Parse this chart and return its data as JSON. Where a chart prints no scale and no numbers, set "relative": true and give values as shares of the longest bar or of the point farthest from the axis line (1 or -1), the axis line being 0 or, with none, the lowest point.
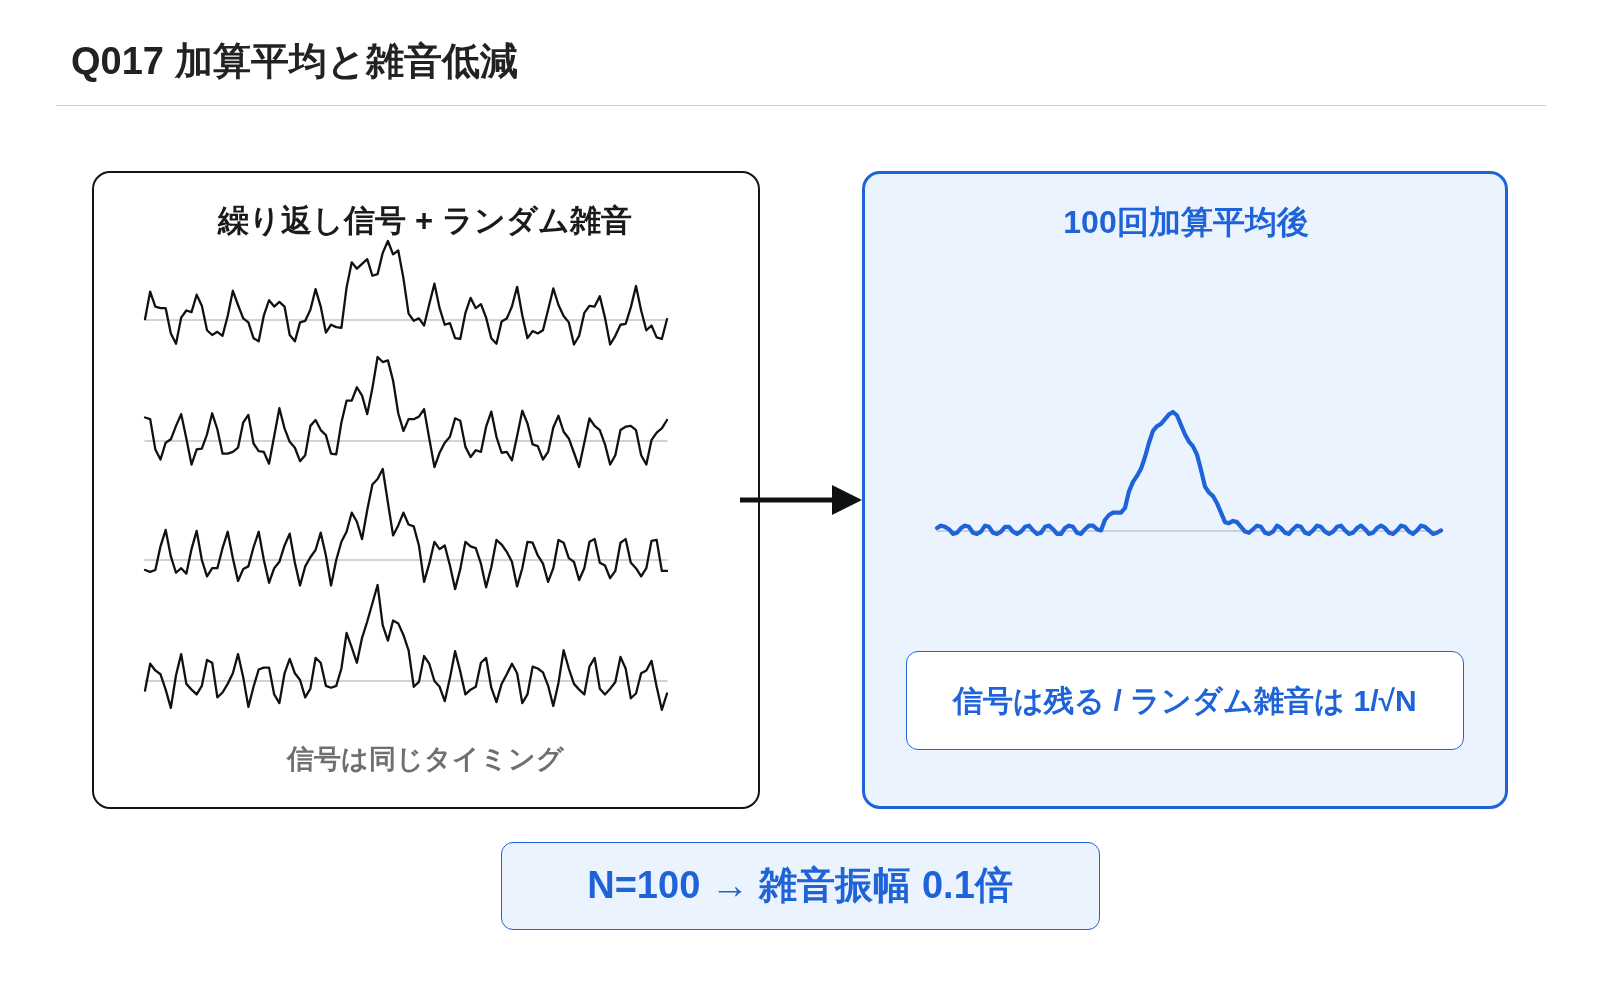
{
  "chart_data": [
    {
      "type": "other",
      "title": "Q017 加算平均と雑音低減"
    },
    {
      "type": "other",
      "title": "繰り返し信号 + ランダム雑音",
      "annotations": [
        "信号は同じタイミング"
      ]
    },
    {
      "type": "line",
      "relative": true,
      "color": "#111111",
      "categories": [
        null,
        null,
        null,
        null,
        null,
        null,
        null,
        null,
        null,
        null,
        null,
        null,
        null,
        null,
        null,
        null,
        null,
        null,
        null,
        null,
        null,
        null,
        null,
        null,
        null,
        null,
        null,
        null,
        null,
        null,
        null,
        null,
        null,
        null,
        null,
        null,
        null,
        null,
        null,
        null,
        null,
        null,
        null,
        null,
        null,
        null,
        null,
        null,
        null,
        null,
        null,
        null,
        null,
        null,
        null,
        null,
        null,
        null,
        null,
        null,
        null,
        null,
        null,
        null,
        null,
        null,
        null,
        null,
        null,
        null,
        null,
        null,
        null,
        null,
        null,
        null,
        null,
        null,
        null,
        null,
        null,
        null,
        null,
        null,
        null,
        null,
        null,
        null,
        null,
        null,
        null,
        null,
        null,
        null,
        null,
        null,
        null,
        null,
        null,
        null,
        null,
        null
      ],
      "values": [
        0.01,
        0.36,
        0.17,
        0.15,
        0.15,
        -0.17,
        -0.3,
        0.03,
        0.12,
        0.1,
        0.32,
        0.18,
        -0.13,
        -0.19,
        -0.15,
        -0.2,
        0.05,
        0.37,
        0.19,
        0.02,
        -0.03,
        -0.23,
        -0.27,
        0.06,
        0.25,
        0.17,
        0.23,
        0.17,
        -0.19,
        -0.27,
        -0.03,
        -0.01,
        0.13,
        0.39,
        0.17,
        -0.16,
        -0.06,
        -0.09,
        -0.1,
        0.41,
        0.73,
        0.65,
        0.71,
        0.77,
        0.56,
        0.58,
        0.85,
        1.0,
        0.83,
        0.88,
        0.53,
        0.08,
        -0.01,
        0.02,
        -0.07,
        0.2,
        0.46,
        0.15,
        -0.06,
        -0.04,
        -0.23,
        -0.24,
        0.09,
        0.28,
        0.15,
        0.2,
        0.03,
        -0.23,
        -0.3,
        -0.02,
        0.02,
        0.17,
        0.42,
        0.06,
        -0.23,
        -0.14,
        -0.17,
        -0.13,
        0.13,
        0.4,
        0.19,
        0.05,
        -0.03,
        -0.31,
        -0.2,
        0.09,
        0.18,
        0.17,
        0.3,
        0.03,
        -0.31,
        -0.2,
        -0.06,
        -0.05,
        0.16,
        0.43,
        0.12,
        -0.13,
        -0.07,
        -0.22,
        -0.24,
        0.01
      ]
    },
    {
      "type": "line",
      "relative": true,
      "color": "#111111",
      "categories": [
        null,
        null,
        null,
        null,
        null,
        null,
        null,
        null,
        null,
        null,
        null,
        null,
        null,
        null,
        null,
        null,
        null,
        null,
        null,
        null,
        null,
        null,
        null,
        null,
        null,
        null,
        null,
        null,
        null,
        null,
        null,
        null,
        null,
        null,
        null,
        null,
        null,
        null,
        null,
        null,
        null,
        null,
        null,
        null,
        null,
        null,
        null,
        null,
        null,
        null,
        null,
        null,
        null,
        null,
        null,
        null,
        null,
        null,
        null,
        null,
        null,
        null,
        null,
        null,
        null,
        null,
        null,
        null,
        null,
        null,
        null,
        null,
        null,
        null,
        null,
        null,
        null,
        null,
        null,
        null,
        null,
        null,
        null,
        null,
        null,
        null,
        null,
        null,
        null,
        null,
        null,
        null,
        null,
        null,
        null,
        null,
        null,
        null,
        null,
        null,
        null,
        null
      ],
      "values": [
        0.28,
        0.26,
        -0.1,
        -0.22,
        -0.02,
        0.02,
        0.18,
        0.32,
        0.03,
        -0.28,
        -0.1,
        -0.09,
        0.08,
        0.33,
        0.14,
        -0.15,
        -0.15,
        -0.13,
        -0.08,
        0.22,
        0.31,
        -0.03,
        -0.12,
        -0.13,
        -0.27,
        0.06,
        0.39,
        0.15,
        -0.01,
        -0.08,
        -0.24,
        -0.17,
        0.18,
        0.25,
        0.13,
        0.07,
        -0.15,
        -0.16,
        0.22,
        0.48,
        0.48,
        0.64,
        0.54,
        0.32,
        0.63,
        1.0,
        0.94,
        0.96,
        0.72,
        0.33,
        0.12,
        0.26,
        0.26,
        0.29,
        0.38,
        0.03,
        -0.31,
        -0.14,
        -0.02,
        0.05,
        0.27,
        0.24,
        -0.07,
        -0.19,
        -0.11,
        -0.13,
        0.17,
        0.35,
        0.05,
        -0.14,
        -0.13,
        -0.23,
        0.06,
        0.36,
        0.21,
        -0.04,
        -0.06,
        -0.22,
        -0.13,
        0.16,
        0.3,
        0.11,
        0.03,
        -0.14,
        -0.31,
        -0.02,
        0.27,
        0.18,
        0.13,
        -0.04,
        -0.28,
        -0.17,
        0.13,
        0.17,
        0.18,
        0.13,
        -0.17,
        -0.28,
        0.01,
        0.1,
        0.15,
        0.25
      ]
    },
    {
      "type": "line",
      "relative": true,
      "color": "#111111",
      "categories": [
        null,
        null,
        null,
        null,
        null,
        null,
        null,
        null,
        null,
        null,
        null,
        null,
        null,
        null,
        null,
        null,
        null,
        null,
        null,
        null,
        null,
        null,
        null,
        null,
        null,
        null,
        null,
        null,
        null,
        null,
        null,
        null,
        null,
        null,
        null,
        null,
        null,
        null,
        null,
        null,
        null,
        null,
        null,
        null,
        null,
        null,
        null,
        null,
        null,
        null,
        null,
        null,
        null,
        null,
        null,
        null,
        null,
        null,
        null,
        null,
        null,
        null,
        null,
        null,
        null,
        null,
        null,
        null,
        null,
        null,
        null,
        null,
        null,
        null,
        null,
        null,
        null,
        null,
        null,
        null,
        null,
        null,
        null,
        null,
        null,
        null,
        null,
        null,
        null,
        null,
        null,
        null,
        null,
        null,
        null,
        null,
        null,
        null,
        null,
        null,
        null,
        null
      ],
      "values": [
        -0.11,
        -0.13,
        -0.11,
        0.15,
        0.33,
        0.04,
        -0.14,
        -0.09,
        -0.15,
        0.12,
        0.32,
        0.0,
        -0.18,
        -0.09,
        -0.09,
        0.13,
        0.31,
        0.02,
        -0.23,
        -0.1,
        -0.07,
        0.14,
        0.31,
        0.0,
        -0.25,
        -0.09,
        -0.02,
        0.16,
        0.29,
        -0.03,
        -0.28,
        -0.07,
        0.03,
        0.11,
        0.3,
        0.05,
        -0.28,
        0.0,
        0.2,
        0.31,
        0.52,
        0.42,
        0.23,
        0.55,
        0.83,
        0.89,
        1.0,
        0.63,
        0.27,
        0.38,
        0.52,
        0.39,
        0.37,
        0.16,
        -0.24,
        -0.04,
        0.2,
        0.12,
        0.16,
        -0.06,
        -0.32,
        -0.1,
        0.2,
        0.15,
        0.13,
        -0.04,
        -0.3,
        -0.08,
        0.22,
        0.17,
        0.09,
        -0.02,
        -0.29,
        -0.09,
        0.2,
        0.19,
        0.05,
        -0.04,
        -0.24,
        -0.09,
        0.22,
        0.19,
        0.02,
        -0.02,
        -0.22,
        -0.09,
        0.2,
        0.23,
        -0.03,
        -0.06,
        -0.2,
        -0.12,
        0.19,
        0.23,
        -0.03,
        -0.09,
        -0.18,
        -0.09,
        0.21,
        0.22,
        -0.12,
        -0.12
      ]
    },
    {
      "type": "line",
      "relative": true,
      "color": "#111111",
      "categories": [
        null,
        null,
        null,
        null,
        null,
        null,
        null,
        null,
        null,
        null,
        null,
        null,
        null,
        null,
        null,
        null,
        null,
        null,
        null,
        null,
        null,
        null,
        null,
        null,
        null,
        null,
        null,
        null,
        null,
        null,
        null,
        null,
        null,
        null,
        null,
        null,
        null,
        null,
        null,
        null,
        null,
        null,
        null,
        null,
        null,
        null,
        null,
        null,
        null,
        null,
        null,
        null,
        null,
        null,
        null,
        null,
        null,
        null,
        null,
        null,
        null,
        null,
        null,
        null,
        null,
        null,
        null,
        null,
        null,
        null,
        null,
        null,
        null,
        null,
        null,
        null,
        null,
        null,
        null,
        null,
        null,
        null,
        null,
        null,
        null,
        null,
        null,
        null,
        null,
        null,
        null,
        null,
        null,
        null,
        null,
        null,
        null,
        null,
        null,
        null,
        null,
        null
      ],
      "values": [
        -0.1,
        0.18,
        0.11,
        0.07,
        -0.09,
        -0.28,
        0.06,
        0.28,
        -0.03,
        -0.09,
        -0.14,
        -0.05,
        0.22,
        0.19,
        -0.17,
        -0.12,
        -0.03,
        0.08,
        0.28,
        0.04,
        -0.27,
        -0.06,
        0.12,
        0.14,
        0.14,
        -0.14,
        -0.23,
        0.08,
        0.23,
        0.08,
        0.01,
        -0.17,
        -0.08,
        0.24,
        0.19,
        -0.05,
        -0.07,
        -0.05,
        0.13,
        0.5,
        0.35,
        0.19,
        0.45,
        0.62,
        0.81,
        1.0,
        0.58,
        0.42,
        0.63,
        0.6,
        0.48,
        0.32,
        -0.06,
        -0.01,
        0.26,
        0.18,
        0.0,
        -0.06,
        -0.21,
        0.03,
        0.31,
        0.1,
        -0.14,
        -0.09,
        -0.06,
        0.19,
        0.24,
        -0.07,
        -0.22,
        -0.03,
        0.07,
        0.18,
        0.08,
        -0.23,
        -0.14,
        0.15,
        0.13,
        0.09,
        -0.05,
        -0.26,
        -0.02,
        0.32,
        0.13,
        -0.03,
        -0.09,
        -0.14,
        0.15,
        0.24,
        -0.08,
        -0.14,
        -0.08,
        -0.01,
        0.25,
        0.13,
        -0.18,
        -0.13,
        0.08,
        0.11,
        0.21,
        -0.06,
        -0.3,
        -0.13
      ]
    },
    {
      "type": "line",
      "relative": true,
      "color": "#1f63d8",
      "title": "100回加算平均後",
      "annotations": [
        "信号は残る / ランダム雑音は 1/√N"
      ],
      "categories": [
        null,
        null,
        null,
        null,
        null,
        null,
        null,
        null,
        null,
        null,
        null,
        null,
        null,
        null,
        null,
        null,
        null,
        null,
        null,
        null,
        null,
        null,
        null,
        null,
        null,
        null,
        null,
        null,
        null,
        null,
        null,
        null,
        null,
        null,
        null,
        null,
        null,
        null,
        null,
        null,
        null,
        null,
        null,
        null,
        null,
        null,
        null,
        null,
        null,
        null,
        null,
        null,
        null,
        null,
        null,
        null,
        null,
        null,
        null,
        null,
        null,
        null,
        null,
        null,
        null,
        null,
        null,
        null,
        null,
        null,
        null,
        null,
        null,
        null,
        null,
        null,
        null,
        null,
        null,
        null,
        null,
        null,
        null,
        null,
        null,
        null,
        null,
        null,
        null,
        null,
        null,
        null,
        null,
        null,
        null,
        null,
        null,
        null,
        null,
        null,
        null,
        null,
        null,
        null,
        null,
        null,
        null,
        null,
        null,
        null,
        null,
        null,
        null,
        null,
        null,
        null,
        null,
        null,
        null,
        null,
        null,
        null,
        null,
        null,
        null,
        null,
        null
      ],
      "values": [
        0.02,
        0.04,
        0.03,
        0.01,
        -0.03,
        -0.02,
        0.02,
        0.04,
        0.03,
        -0.02,
        -0.03,
        -0.01,
        0.04,
        0.03,
        -0.02,
        -0.03,
        -0.01,
        0.03,
        0.03,
        -0.01,
        -0.03,
        -0.01,
        0.03,
        0.04,
        0.0,
        -0.03,
        -0.02,
        0.03,
        0.04,
        0.01,
        -0.03,
        -0.03,
        0.02,
        0.04,
        0.03,
        -0.02,
        -0.03,
        0.01,
        0.04,
        0.04,
        0.01,
        0.0,
        0.09,
        0.13,
        0.15,
        0.15,
        0.15,
        0.19,
        0.33,
        0.41,
        0.46,
        0.52,
        0.62,
        0.74,
        0.84,
        0.88,
        0.9,
        0.94,
        0.98,
        1.0,
        0.97,
        0.89,
        0.81,
        0.75,
        0.71,
        0.64,
        0.51,
        0.37,
        0.32,
        0.29,
        0.23,
        0.15,
        0.07,
        0.06,
        0.08,
        0.07,
        0.03,
        -0.01,
        -0.02,
        0.01,
        0.04,
        0.03,
        -0.02,
        -0.03,
        -0.01,
        0.04,
        0.02,
        -0.02,
        -0.03,
        0.01,
        0.04,
        0.03,
        -0.02,
        -0.03,
        0.0,
        0.04,
        0.03,
        -0.01,
        -0.03,
        -0.01,
        0.03,
        0.04,
        0.0,
        -0.03,
        -0.02,
        0.02,
        0.04,
        0.01,
        -0.03,
        -0.02,
        0.02,
        0.04,
        0.02,
        -0.02,
        -0.03,
        0.0,
        0.04,
        0.03,
        -0.01,
        -0.03,
        0.0,
        0.04,
        0.03,
        0.0,
        -0.03,
        -0.02,
        0.0
      ]
    },
    {
      "type": "other",
      "annotations": [
        "N=100 → 雑音振幅 0.1倍"
      ]
    }
  ]
}
